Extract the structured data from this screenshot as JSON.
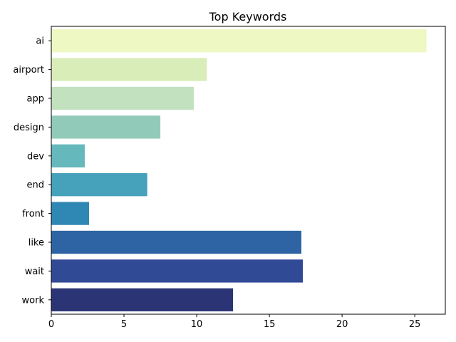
{
  "chart_data": {
    "type": "bar",
    "orientation": "horizontal",
    "title": "Top Keywords",
    "xlabel": "",
    "ylabel": "",
    "categories": [
      "ai",
      "airport",
      "app",
      "design",
      "dev",
      "end",
      "front",
      "like",
      "wait",
      "work"
    ],
    "values": [
      25.8,
      10.7,
      9.8,
      7.5,
      2.3,
      6.6,
      2.6,
      17.2,
      17.3,
      12.5
    ],
    "colors": [
      "#edf8c3",
      "#d9edb9",
      "#c2e1bf",
      "#92cab9",
      "#65b8bc",
      "#46a1ba",
      "#2f87b3",
      "#2f64a4",
      "#314a96",
      "#2b3475"
    ],
    "xlim": [
      0,
      27.1
    ],
    "xticks": [
      0,
      5,
      10,
      15,
      20,
      25
    ],
    "grid": false,
    "legend": "none"
  }
}
